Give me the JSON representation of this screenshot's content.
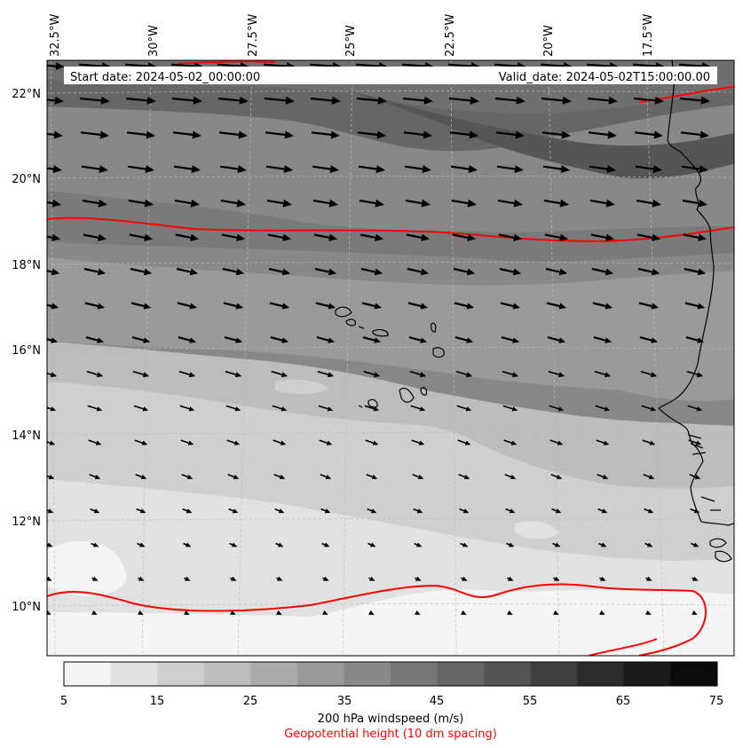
{
  "header": {
    "start_date": "Start date: 2024-05-02_00:00:00",
    "valid_date": "Valid_date: 2024-05-02T15:00:00.00"
  },
  "longitude_labels": [
    "32.5°W",
    "30°W",
    "27.5°W",
    "25°W",
    "22.5°W",
    "20°W",
    "17.5°W"
  ],
  "latitude_labels": [
    "22°N",
    "20°N",
    "18°N",
    "16°N",
    "14°N",
    "12°N",
    "10°N"
  ],
  "colorbar": {
    "ticks": [
      "5",
      "15",
      "25",
      "35",
      "45",
      "55",
      "65",
      "75"
    ],
    "bin_colors": [
      "#f5f5f5",
      "#e1e1e1",
      "#cfcfcf",
      "#bdbdbd",
      "#aaaaaa",
      "#9a9a9a",
      "#888888",
      "#777777",
      "#666666",
      "#555555",
      "#404040",
      "#2b2b2b",
      "#1a1a1a",
      "#0b0b0b"
    ],
    "title": "200 hPa windspeed (m/s)",
    "subtitle": "Geopotential height (10 dm spacing)",
    "subtitle_color": "#ff0000"
  },
  "colors": {
    "contour": "#ff0000",
    "coastline": "#000000",
    "wind_arrow": "#000000",
    "gridline": "#bbbbbb"
  },
  "map": {
    "lon_range": [
      "33°W",
      "16°W"
    ],
    "lat_range": [
      "9°N",
      "22.7°N"
    ],
    "wind_vectors": "east / east-southeast, strongest in the north, weakening southward"
  }
}
